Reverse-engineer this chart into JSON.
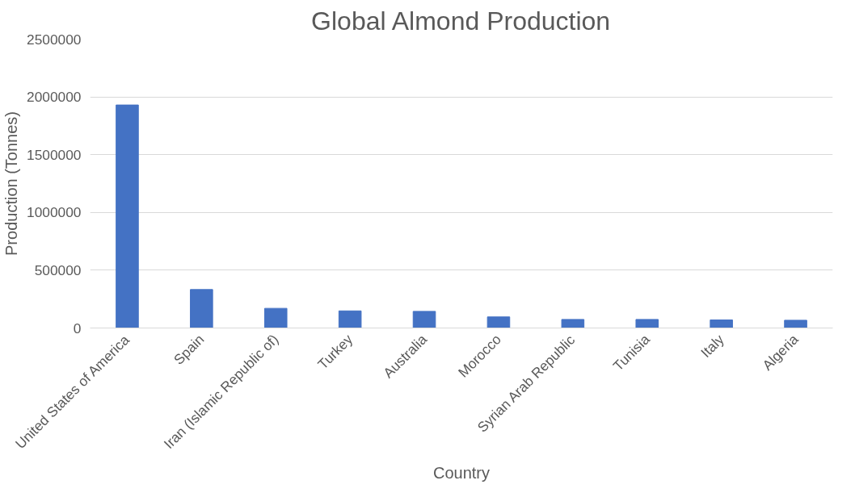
{
  "chart_data": {
    "type": "bar",
    "title": "Global Almond Production",
    "xlabel": "Country",
    "ylabel": "Production (Tonnes)",
    "categories": [
      "United States of America",
      "Spain",
      "Iran (Islamic Republic of)",
      "Turkey",
      "Australia",
      "Morocco",
      "Syrian Arab Republic",
      "Tunisia",
      "Italy",
      "Algeria"
    ],
    "values": [
      1930000,
      333000,
      170000,
      148000,
      144000,
      96000,
      74000,
      74000,
      70000,
      67000
    ],
    "color": "#4472c4",
    "ylim": [
      0,
      2500000
    ],
    "yticks": [
      0,
      500000,
      1000000,
      1500000,
      2000000,
      2500000
    ],
    "grid": "y"
  }
}
